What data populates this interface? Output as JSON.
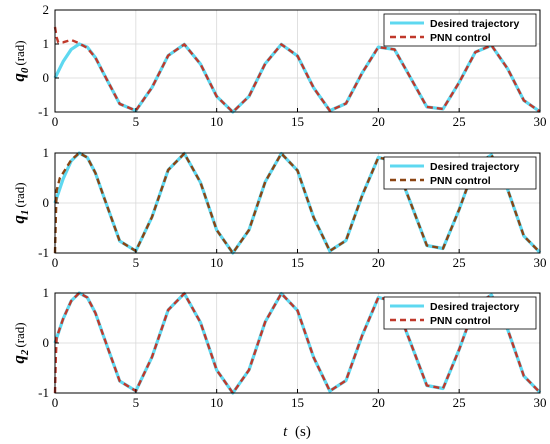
{
  "chart_data": [
    {
      "type": "line",
      "xlim": [
        0,
        30
      ],
      "ylim": [
        -1,
        2
      ],
      "x_ticks": [
        0,
        5,
        10,
        15,
        20,
        25,
        30
      ],
      "y_ticks": [
        -1,
        0,
        1,
        2
      ],
      "ylabel": {
        "main": "q",
        "sub": "0",
        "unit": "(rad)"
      },
      "grid": true,
      "legend_placement": "top-right",
      "series": [
        {
          "name": "Desired trajectory",
          "style": "solid",
          "color": "#5ed8f0",
          "x": [
            0,
            0.5,
            1,
            1.5,
            2,
            2.5,
            3,
            4,
            5,
            6,
            7,
            8,
            9,
            10,
            11,
            12,
            13,
            14,
            15,
            16,
            17,
            18,
            19,
            20,
            21,
            22,
            23,
            24,
            25,
            26,
            27,
            28,
            29,
            30
          ],
          "values": [
            0,
            0.48,
            0.84,
            1.0,
            0.91,
            0.6,
            0.14,
            -0.76,
            -0.96,
            -0.28,
            0.66,
            0.99,
            0.41,
            -0.54,
            -1.0,
            -0.54,
            0.42,
            0.99,
            0.65,
            -0.29,
            -0.96,
            -0.75,
            0.15,
            0.91,
            0.84,
            0.0,
            -0.85,
            -0.91,
            -0.13,
            0.76,
            0.96,
            0.27,
            -0.66,
            -0.99
          ]
        },
        {
          "name": "PNN control",
          "style": "dashed",
          "color": "#c0392b",
          "x": [
            0,
            0.1,
            0.2,
            0.5,
            1,
            1.5,
            2,
            2.5,
            3,
            4,
            5,
            6,
            7,
            8,
            9,
            10,
            11,
            12,
            13,
            14,
            15,
            16,
            17,
            18,
            19,
            20,
            21,
            22,
            23,
            24,
            25,
            26,
            27,
            28,
            29,
            30
          ],
          "values": [
            1.5,
            1.2,
            1.05,
            1.05,
            1.12,
            1.02,
            0.88,
            0.6,
            0.14,
            -0.76,
            -0.96,
            -0.28,
            0.66,
            0.99,
            0.41,
            -0.54,
            -1.0,
            -0.54,
            0.42,
            0.99,
            0.65,
            -0.29,
            -0.96,
            -0.75,
            0.15,
            0.91,
            0.84,
            0.0,
            -0.85,
            -0.91,
            -0.13,
            0.76,
            0.96,
            0.27,
            -0.66,
            -0.99
          ]
        }
      ]
    },
    {
      "type": "line",
      "xlim": [
        0,
        30
      ],
      "ylim": [
        -1,
        1
      ],
      "x_ticks": [
        0,
        5,
        10,
        15,
        20,
        25,
        30
      ],
      "y_ticks": [
        -1,
        0,
        1
      ],
      "ylabel": {
        "main": "q",
        "sub": "1",
        "unit": "(rad)"
      },
      "grid": true,
      "legend_placement": "top-right",
      "series": [
        {
          "name": "Desired trajectory",
          "style": "solid",
          "color": "#5ed8f0",
          "x": [
            0,
            0.5,
            1,
            1.5,
            2,
            2.5,
            3,
            4,
            5,
            6,
            7,
            8,
            9,
            10,
            11,
            12,
            13,
            14,
            15,
            16,
            17,
            18,
            19,
            20,
            21,
            22,
            23,
            24,
            25,
            26,
            27,
            28,
            29,
            30
          ],
          "values": [
            0,
            0.48,
            0.84,
            1.0,
            0.91,
            0.6,
            0.14,
            -0.76,
            -0.96,
            -0.28,
            0.66,
            0.99,
            0.41,
            -0.54,
            -1.0,
            -0.54,
            0.42,
            0.99,
            0.65,
            -0.29,
            -0.96,
            -0.75,
            0.15,
            0.91,
            0.84,
            0.0,
            -0.85,
            -0.91,
            -0.13,
            0.76,
            0.96,
            0.27,
            -0.66,
            -0.99
          ]
        },
        {
          "name": "PNN control",
          "style": "dashed",
          "color": "#8b4513",
          "x": [
            0,
            0.05,
            0.1,
            0.3,
            0.5,
            1,
            1.5,
            2,
            2.5,
            3,
            4,
            5,
            6,
            7,
            8,
            9,
            10,
            11,
            12,
            13,
            14,
            15,
            16,
            17,
            18,
            19,
            20,
            21,
            22,
            23,
            24,
            25,
            26,
            27,
            28,
            29,
            30
          ],
          "values": [
            -1.0,
            -0.3,
            0.25,
            0.5,
            0.6,
            0.86,
            1.0,
            0.91,
            0.6,
            0.14,
            -0.76,
            -0.96,
            -0.28,
            0.66,
            0.99,
            0.41,
            -0.54,
            -1.0,
            -0.54,
            0.42,
            0.99,
            0.65,
            -0.29,
            -0.96,
            -0.75,
            0.15,
            0.91,
            0.84,
            0.0,
            -0.85,
            -0.91,
            -0.13,
            0.76,
            0.96,
            0.27,
            -0.66,
            -0.99
          ]
        }
      ]
    },
    {
      "type": "line",
      "xlim": [
        0,
        30
      ],
      "ylim": [
        -1,
        1
      ],
      "x_ticks": [
        0,
        5,
        10,
        15,
        20,
        25,
        30
      ],
      "y_ticks": [
        -1,
        0,
        1
      ],
      "ylabel": {
        "main": "q",
        "sub": "2",
        "unit": "(rad)"
      },
      "xlabel": {
        "main": "t",
        "unit": "(s)"
      },
      "grid": true,
      "legend_placement": "top-right",
      "series": [
        {
          "name": "Desired trajectory",
          "style": "solid",
          "color": "#5ed8f0",
          "x": [
            0,
            0.5,
            1,
            1.5,
            2,
            2.5,
            3,
            4,
            5,
            6,
            7,
            8,
            9,
            10,
            11,
            12,
            13,
            14,
            15,
            16,
            17,
            18,
            19,
            20,
            21,
            22,
            23,
            24,
            25,
            26,
            27,
            28,
            29,
            30
          ],
          "values": [
            0,
            0.48,
            0.84,
            1.0,
            0.91,
            0.6,
            0.14,
            -0.76,
            -0.96,
            -0.28,
            0.66,
            0.99,
            0.41,
            -0.54,
            -1.0,
            -0.54,
            0.42,
            0.99,
            0.65,
            -0.29,
            -0.96,
            -0.75,
            0.15,
            0.91,
            0.84,
            0.0,
            -0.85,
            -0.91,
            -0.13,
            0.76,
            0.96,
            0.27,
            -0.66,
            -0.99
          ]
        },
        {
          "name": "PNN control",
          "style": "dashed",
          "color": "#c0392b",
          "x": [
            0,
            0.05,
            0.1,
            0.3,
            0.5,
            1,
            1.5,
            2,
            2.5,
            3,
            4,
            5,
            6,
            7,
            8,
            9,
            10,
            11,
            12,
            13,
            14,
            15,
            16,
            17,
            18,
            19,
            20,
            21,
            22,
            23,
            24,
            25,
            26,
            27,
            28,
            29,
            30
          ],
          "values": [
            -1.0,
            -0.3,
            0.1,
            0.3,
            0.48,
            0.84,
            1.0,
            0.91,
            0.6,
            0.14,
            -0.76,
            -0.96,
            -0.28,
            0.66,
            0.99,
            0.41,
            -0.54,
            -1.0,
            -0.54,
            0.42,
            0.99,
            0.65,
            -0.29,
            -0.96,
            -0.75,
            0.15,
            0.91,
            0.84,
            0.0,
            -0.85,
            -0.91,
            -0.13,
            0.76,
            0.96,
            0.27,
            -0.66,
            -0.99
          ]
        }
      ]
    }
  ]
}
